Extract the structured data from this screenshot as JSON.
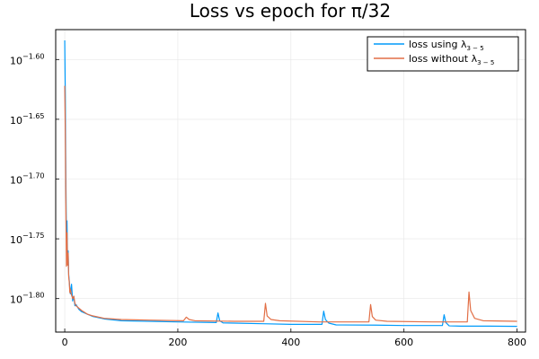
{
  "chart_data": {
    "type": "line",
    "title": "Loss vs epoch for π/32",
    "xlabel": "",
    "ylabel": "",
    "y_scale": "log10",
    "xlim": [
      -16,
      815
    ],
    "ylim_log10": [
      -1.828,
      -1.575
    ],
    "x_ticks": [
      0,
      200,
      400,
      600,
      800
    ],
    "y_ticks_log10": [
      -1.6,
      -1.65,
      -1.7,
      -1.75,
      -1.8
    ],
    "y_tick_base": "10",
    "y_tick_exponents": [
      "−1.60",
      "−1.65",
      "−1.70",
      "−1.75",
      "−1.80"
    ],
    "grid": true,
    "legend_position": "top-right",
    "series": [
      {
        "name": "loss using λ3 − 5",
        "legend_main": "loss using λ",
        "legend_sub": "3 − 5",
        "color": "#009AFA",
        "points": [
          [
            0,
            -1.584
          ],
          [
            1,
            -1.63
          ],
          [
            2,
            -1.7
          ],
          [
            3,
            -1.75
          ],
          [
            4,
            -1.735
          ],
          [
            5,
            -1.77
          ],
          [
            6,
            -1.76
          ],
          [
            7,
            -1.78
          ],
          [
            8,
            -1.785
          ],
          [
            9,
            -1.792
          ],
          [
            10,
            -1.796
          ],
          [
            12,
            -1.788
          ],
          [
            14,
            -1.802
          ],
          [
            16,
            -1.798
          ],
          [
            18,
            -1.806
          ],
          [
            20,
            -1.805
          ],
          [
            25,
            -1.809
          ],
          [
            30,
            -1.811
          ],
          [
            40,
            -1.813
          ],
          [
            50,
            -1.815
          ],
          [
            70,
            -1.817
          ],
          [
            100,
            -1.8185
          ],
          [
            150,
            -1.819
          ],
          [
            200,
            -1.8195
          ],
          [
            268,
            -1.82
          ],
          [
            271,
            -1.812
          ],
          [
            274,
            -1.8185
          ],
          [
            280,
            -1.8203
          ],
          [
            300,
            -1.8205
          ],
          [
            350,
            -1.821
          ],
          [
            400,
            -1.8215
          ],
          [
            455,
            -1.8215
          ],
          [
            458,
            -1.8105
          ],
          [
            461,
            -1.8175
          ],
          [
            467,
            -1.8205
          ],
          [
            480,
            -1.822
          ],
          [
            550,
            -1.8222
          ],
          [
            600,
            -1.8225
          ],
          [
            668,
            -1.8225
          ],
          [
            671,
            -1.8135
          ],
          [
            674,
            -1.82
          ],
          [
            680,
            -1.8228
          ],
          [
            700,
            -1.823
          ],
          [
            750,
            -1.823
          ],
          [
            800,
            -1.8232
          ]
        ]
      },
      {
        "name": "loss without λ3 − 5",
        "legend_main": "loss without λ",
        "legend_sub": "3 − 5",
        "color": "#E26F46",
        "points": [
          [
            0,
            -1.622
          ],
          [
            1,
            -1.66
          ],
          [
            2,
            -1.72
          ],
          [
            3,
            -1.773
          ],
          [
            4,
            -1.745
          ],
          [
            5,
            -1.772
          ],
          [
            6,
            -1.762
          ],
          [
            7,
            -1.782
          ],
          [
            8,
            -1.786
          ],
          [
            9,
            -1.795
          ],
          [
            10,
            -1.792
          ],
          [
            12,
            -1.797
          ],
          [
            14,
            -1.8
          ],
          [
            16,
            -1.798
          ],
          [
            18,
            -1.804
          ],
          [
            20,
            -1.806
          ],
          [
            25,
            -1.808
          ],
          [
            30,
            -1.81
          ],
          [
            40,
            -1.813
          ],
          [
            50,
            -1.8145
          ],
          [
            70,
            -1.8165
          ],
          [
            100,
            -1.8175
          ],
          [
            150,
            -1.818
          ],
          [
            210,
            -1.8185
          ],
          [
            215,
            -1.8155
          ],
          [
            220,
            -1.8175
          ],
          [
            230,
            -1.8185
          ],
          [
            300,
            -1.819
          ],
          [
            352,
            -1.819
          ],
          [
            355,
            -1.804
          ],
          [
            358,
            -1.8145
          ],
          [
            365,
            -1.8175
          ],
          [
            380,
            -1.8185
          ],
          [
            450,
            -1.8195
          ],
          [
            538,
            -1.8195
          ],
          [
            541,
            -1.805
          ],
          [
            544,
            -1.815
          ],
          [
            550,
            -1.818
          ],
          [
            570,
            -1.819
          ],
          [
            650,
            -1.8195
          ],
          [
            712,
            -1.8195
          ],
          [
            715,
            -1.7945
          ],
          [
            718,
            -1.81
          ],
          [
            725,
            -1.8165
          ],
          [
            740,
            -1.8185
          ],
          [
            800,
            -1.819
          ]
        ]
      }
    ]
  }
}
